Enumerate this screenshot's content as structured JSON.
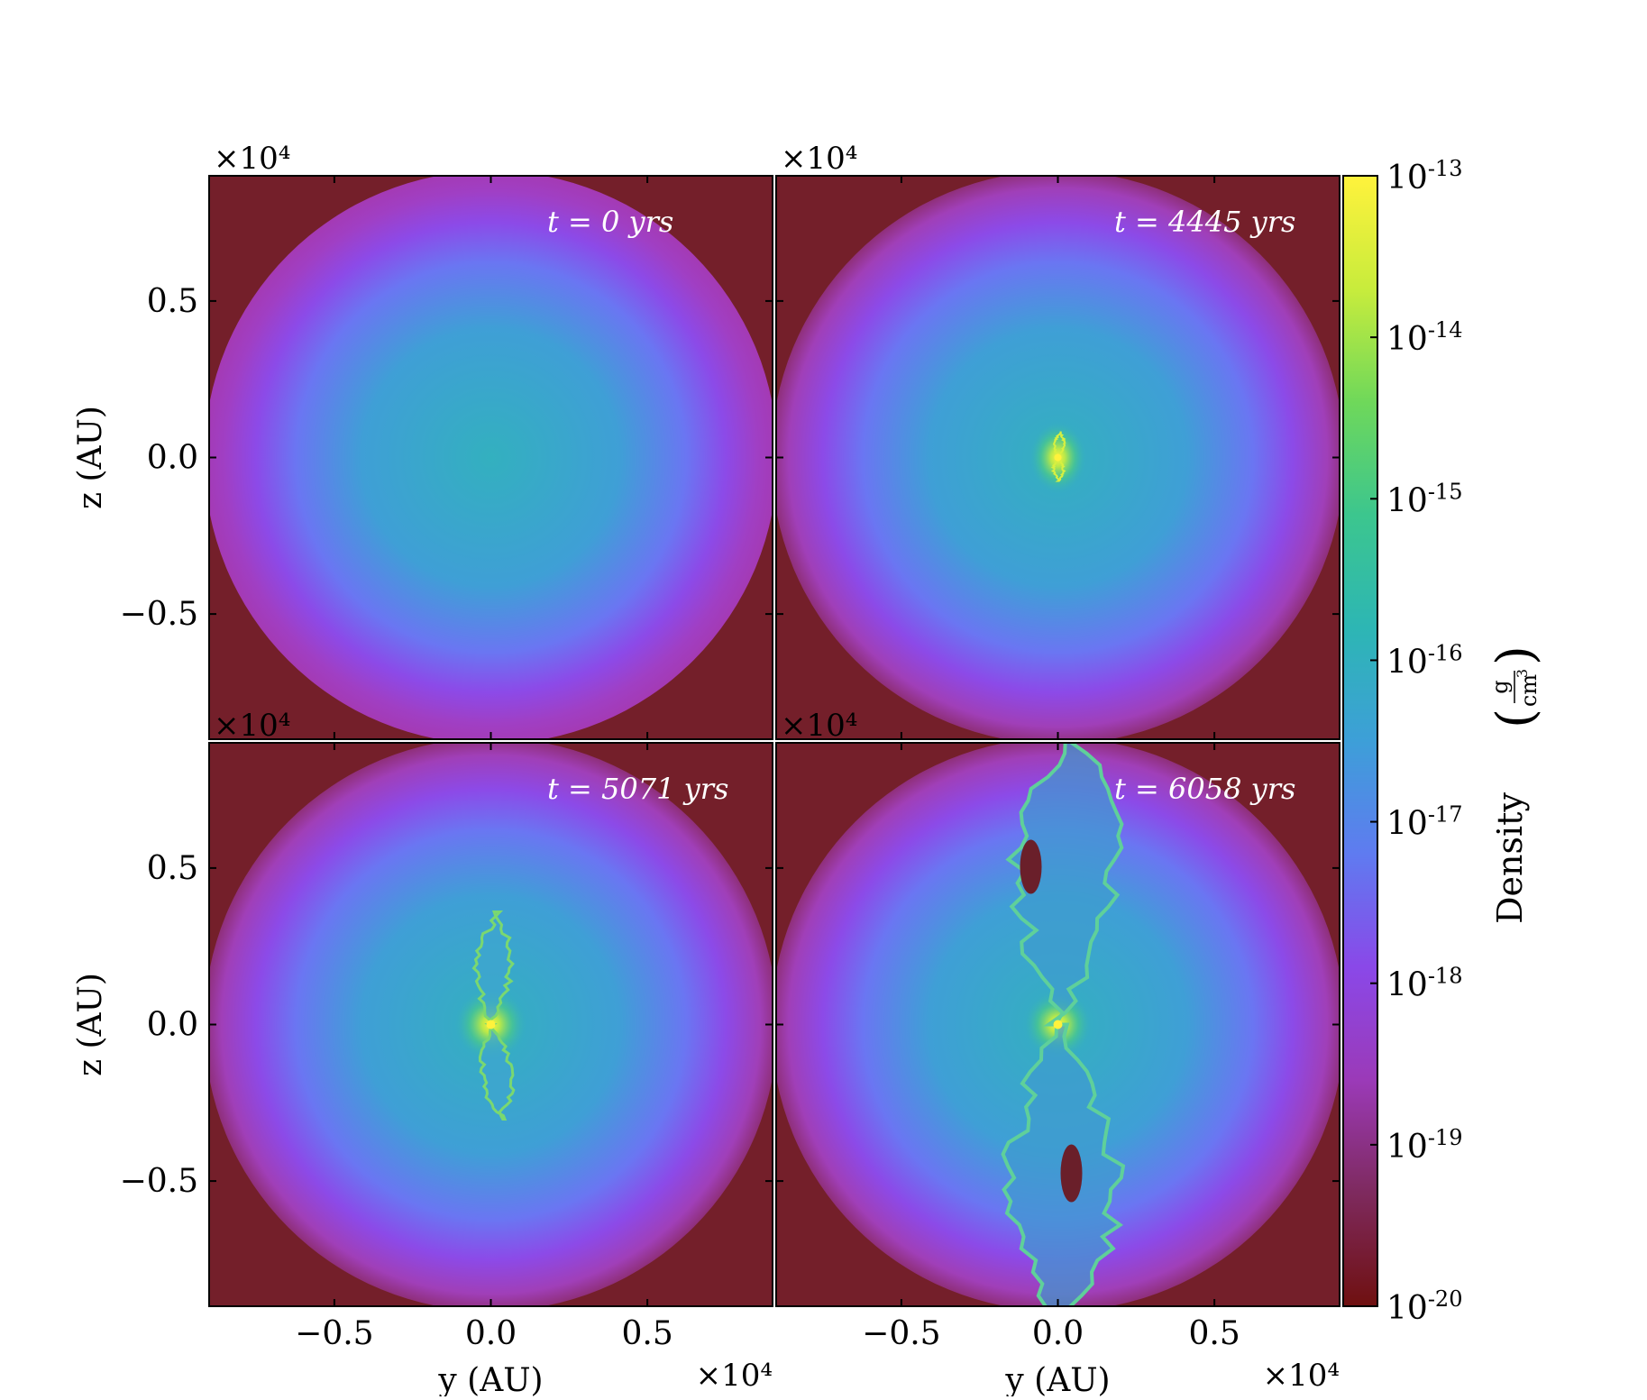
{
  "chart_data": {
    "type": "heatmap",
    "panels": [
      {
        "time_label": "t = 0 yrs",
        "time_yrs": 0,
        "feature": "none"
      },
      {
        "time_label": "t = 4445 yrs",
        "time_yrs": 4445,
        "feature": "core"
      },
      {
        "time_label": "t = 5071 yrs",
        "time_yrs": 5071,
        "feature": "small-outflow"
      },
      {
        "time_label": "t = 6058 yrs",
        "time_yrs": 6058,
        "feature": "large-outflow"
      }
    ],
    "xlabel": "y  (AU)",
    "ylabel": "z  (AU)",
    "offset_label": "×10⁴",
    "x_range": [
      -0.9,
      0.9
    ],
    "y_range": [
      -0.9,
      0.9
    ],
    "xticks": [
      "−0.5",
      "0.0",
      "0.5"
    ],
    "xtick_values": [
      -0.5,
      0.0,
      0.5
    ],
    "yticks": [
      "0.5",
      "0.0",
      "−0.5"
    ],
    "ytick_values": [
      0.5,
      0.0,
      -0.5
    ],
    "colorbar": {
      "label": "Density",
      "unit_num": "g",
      "unit_den": "cm",
      "unit_den_exp": "3",
      "scale": "log",
      "range": [
        1e-20,
        1e-13
      ],
      "ticks": [
        {
          "value": -13,
          "base": "10",
          "exp": "-13"
        },
        {
          "value": -14,
          "base": "10",
          "exp": "-14"
        },
        {
          "value": -15,
          "base": "10",
          "exp": "-15"
        },
        {
          "value": -16,
          "base": "10",
          "exp": "-16"
        },
        {
          "value": -17,
          "base": "10",
          "exp": "-17"
        },
        {
          "value": -18,
          "base": "10",
          "exp": "-18"
        },
        {
          "value": -19,
          "base": "10",
          "exp": "-19"
        },
        {
          "value": -20,
          "base": "10",
          "exp": "-20"
        }
      ],
      "colormap": [
        "#6f1010",
        "#7e2a5e",
        "#9b3ab8",
        "#8a48e8",
        "#5f7bf0",
        "#3d9fd8",
        "#2db6b4",
        "#3cc68e",
        "#6fd85a",
        "#c8ec3c",
        "#fff23c"
      ]
    }
  }
}
